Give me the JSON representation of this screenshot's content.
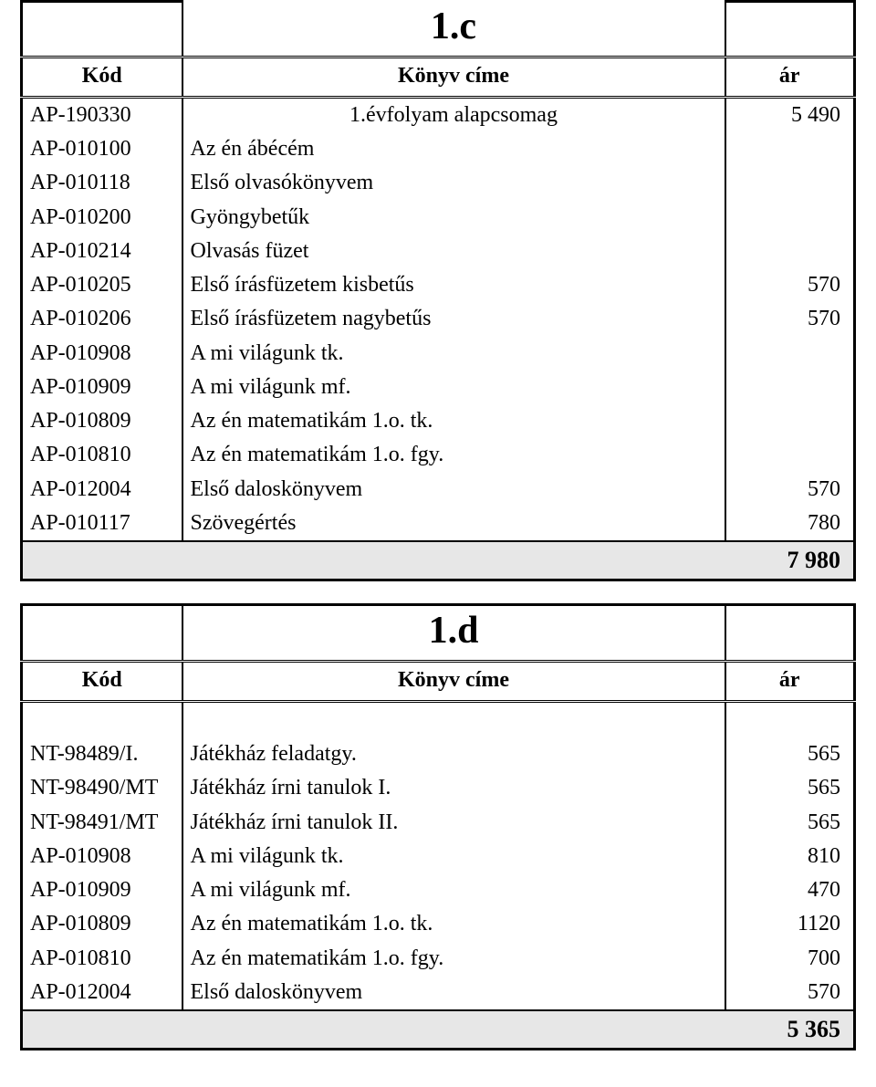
{
  "colors": {
    "background": "#ffffff",
    "text": "#000000",
    "border": "#000000",
    "total_bg": "#e7e7e7"
  },
  "typography": {
    "family": "Times New Roman",
    "title_fontsize_pt": 32,
    "header_fontsize_pt": 18,
    "body_fontsize_pt": 18,
    "total_fontsize_pt": 20
  },
  "headers": {
    "code": "Kód",
    "title": "Könyv címe",
    "price": "ár"
  },
  "table1": {
    "title": "1.c",
    "rows": [
      {
        "code": "AP-190330",
        "title": "1.évfolyam alapcsomag",
        "price": "5 490",
        "title_align": "center"
      },
      {
        "code": "AP-010100",
        "title": "Az én ábécém",
        "price": ""
      },
      {
        "code": "AP-010118",
        "title": "Első olvasókönyvem",
        "price": ""
      },
      {
        "code": "AP-010200",
        "title": "Gyöngybetűk",
        "price": ""
      },
      {
        "code": "AP-010214",
        "title": "Olvasás füzet",
        "price": ""
      },
      {
        "code": "AP-010205",
        "title": "Első írásfüzetem kisbetűs",
        "price": "570"
      },
      {
        "code": "AP-010206",
        "title": "Első írásfüzetem nagybetűs",
        "price": "570"
      },
      {
        "code": "AP-010908",
        "title": "A mi világunk tk.",
        "price": ""
      },
      {
        "code": "AP-010909",
        "title": "A mi világunk mf.",
        "price": ""
      },
      {
        "code": "AP-010809",
        "title": "Az én matematikám 1.o. tk.",
        "price": ""
      },
      {
        "code": "AP-010810",
        "title": "Az én matematikám 1.o. fgy.",
        "price": ""
      },
      {
        "code": "AP-012004",
        "title": "Első daloskönyvem",
        "price": "570"
      },
      {
        "code": "AP-010117",
        "title": "Szövegértés",
        "price": "780"
      }
    ],
    "total": "7 980"
  },
  "table2": {
    "title": "1.d",
    "rows": [
      {
        "code": "NT-98489/I.",
        "title": "Játékház feladatgy.",
        "price": "565"
      },
      {
        "code": "NT-98490/MT",
        "title": "Játékház írni tanulok  I.",
        "price": "565"
      },
      {
        "code": "NT-98491/MT",
        "title": "Játékház írni tanulok  II.",
        "price": "565"
      },
      {
        "code": "AP-010908",
        "title": "A mi világunk tk.",
        "price": "810"
      },
      {
        "code": "AP-010909",
        "title": "A mi világunk mf.",
        "price": "470"
      },
      {
        "code": "AP-010809",
        "title": "Az én matematikám 1.o. tk.",
        "price": "1120"
      },
      {
        "code": "AP-010810",
        "title": "Az én matematikám 1.o. fgy.",
        "price": "700"
      },
      {
        "code": "AP-012004",
        "title": "Első daloskönyvem",
        "price": "570"
      }
    ],
    "total": "5 365"
  }
}
